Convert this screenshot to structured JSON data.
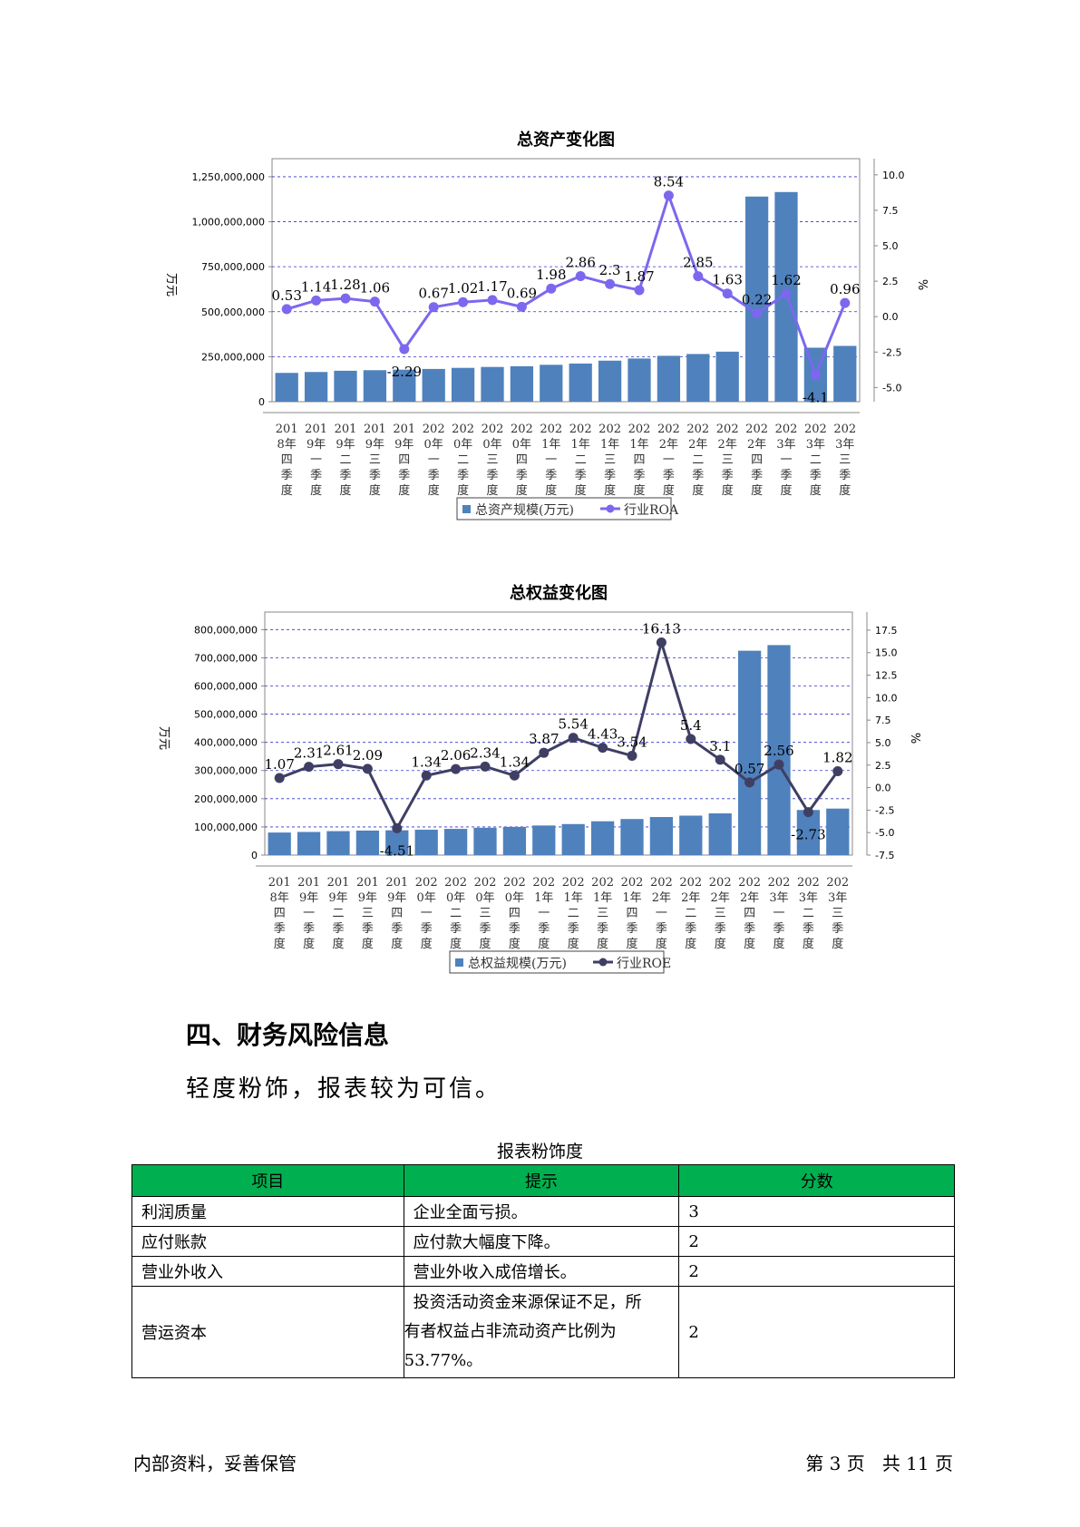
{
  "charts": {
    "quarters": [
      [
        "201",
        "8年",
        "四",
        "季",
        "度"
      ],
      [
        "201",
        "9年",
        "一",
        "季",
        "度"
      ],
      [
        "201",
        "9年",
        "二",
        "季",
        "度"
      ],
      [
        "201",
        "9年",
        "三",
        "季",
        "度"
      ],
      [
        "201",
        "9年",
        "四",
        "季",
        "度"
      ],
      [
        "202",
        "0年",
        "一",
        "季",
        "度"
      ],
      [
        "202",
        "0年",
        "二",
        "季",
        "度"
      ],
      [
        "202",
        "0年",
        "三",
        "季",
        "度"
      ],
      [
        "202",
        "0年",
        "四",
        "季",
        "度"
      ],
      [
        "202",
        "1年",
        "一",
        "季",
        "度"
      ],
      [
        "202",
        "1年",
        "二",
        "季",
        "度"
      ],
      [
        "202",
        "1年",
        "三",
        "季",
        "度"
      ],
      [
        "202",
        "1年",
        "四",
        "季",
        "度"
      ],
      [
        "202",
        "2年",
        "一",
        "季",
        "度"
      ],
      [
        "202",
        "2年",
        "二",
        "季",
        "度"
      ],
      [
        "202",
        "2年",
        "三",
        "季",
        "度"
      ],
      [
        "202",
        "2年",
        "四",
        "季",
        "度"
      ],
      [
        "202",
        "3年",
        "一",
        "季",
        "度"
      ],
      [
        "202",
        "3年",
        "二",
        "季",
        "度"
      ],
      [
        "202",
        "3年",
        "三",
        "季",
        "度"
      ]
    ]
  },
  "chart_data": [
    {
      "type": "bar",
      "title": "总资产变化图",
      "ylabel": "万元",
      "y2label": "%",
      "ylim": [
        0,
        1300000000
      ],
      "y2lim": [
        -6,
        10.5
      ],
      "yticks": [
        0,
        250000000,
        500000000,
        750000000,
        1000000000,
        1250000000
      ],
      "yticklabels": [
        "0",
        "250,000,000",
        "500,000,000",
        "750,000,000",
        "1,000,000,000",
        "1,250,000,000"
      ],
      "y2ticks": [
        -5.0,
        -2.5,
        0.0,
        2.5,
        5.0,
        7.5,
        10.0
      ],
      "y2ticklabels": [
        "-5.0",
        "-2.5",
        "0.0",
        "2.5",
        "5.0",
        "7.5",
        "10.0"
      ],
      "grid": true,
      "legend": "bottom",
      "series": [
        {
          "name": "总资产规模(万元)",
          "type": "bar",
          "color": "#4f81bd",
          "values": [
            160000000,
            165000000,
            172000000,
            175000000,
            178000000,
            182000000,
            188000000,
            193000000,
            197000000,
            205000000,
            212000000,
            228000000,
            240000000,
            255000000,
            265000000,
            278000000,
            1140000000,
            1165000000,
            300000000,
            310000000
          ]
        },
        {
          "name": "行业ROA",
          "type": "line",
          "axis": "right",
          "color": "#7b68ee",
          "values": [
            0.53,
            1.14,
            1.28,
            1.06,
            -2.29,
            0.67,
            1.02,
            1.17,
            0.69,
            1.98,
            2.86,
            2.3,
            1.87,
            8.54,
            2.85,
            1.63,
            0.22,
            1.62,
            -4.1,
            0.96
          ],
          "labels": [
            "0.53",
            "1.14",
            "1.28",
            "1.06",
            "-2.29",
            "0.67",
            "1.02",
            "1.17",
            "0.69",
            "1.98",
            "2.86",
            "2.3",
            "1.87",
            "8.54",
            "2.85",
            "1.63",
            "0.22",
            "1.62",
            "-4.1",
            "0.96"
          ]
        }
      ]
    },
    {
      "type": "bar",
      "title": "总权益变化图",
      "ylabel": "万元",
      "y2label": "%",
      "ylim": [
        0,
        830000000
      ],
      "y2lim": [
        -7.5,
        18.5
      ],
      "yticks": [
        0,
        100000000,
        200000000,
        300000000,
        400000000,
        500000000,
        600000000,
        700000000,
        800000000
      ],
      "yticklabels": [
        "0",
        "100,000,000",
        "200,000,000",
        "300,000,000",
        "400,000,000",
        "500,000,000",
        "600,000,000",
        "700,000,000",
        "800,000,000"
      ],
      "y2ticks": [
        -7.5,
        -5.0,
        -2.5,
        0.0,
        2.5,
        5.0,
        7.5,
        10.0,
        12.5,
        15.0,
        17.5
      ],
      "y2ticklabels": [
        "-7.5",
        "-5.0",
        "-2.5",
        "0.0",
        "2.5",
        "5.0",
        "7.5",
        "10.0",
        "12.5",
        "15.0",
        "17.5"
      ],
      "grid": true,
      "legend": "bottom",
      "series": [
        {
          "name": "总权益规模(万元)",
          "type": "bar",
          "color": "#4f81bd",
          "values": [
            80000000,
            82000000,
            85000000,
            87000000,
            88000000,
            90000000,
            93000000,
            97000000,
            100000000,
            105000000,
            110000000,
            120000000,
            128000000,
            135000000,
            140000000,
            148000000,
            725000000,
            745000000,
            160000000,
            165000000
          ]
        },
        {
          "name": "行业ROE",
          "type": "line",
          "axis": "right",
          "color": "#3f3f64",
          "values": [
            1.07,
            2.31,
            2.61,
            2.09,
            -4.51,
            1.34,
            2.06,
            2.34,
            1.34,
            3.87,
            5.54,
            4.43,
            3.54,
            16.13,
            5.4,
            3.1,
            0.57,
            2.56,
            -2.73,
            1.82
          ],
          "labels": [
            "1.07",
            "2.31",
            "2.61",
            "2.09",
            "-4.51",
            "1.34",
            "2.06",
            "2.34",
            "1.34",
            "3.87",
            "5.54",
            "4.43",
            "3.54",
            "16.13",
            "5.4",
            "3.1",
            "0.57",
            "2.56",
            "-2.73",
            "1.82"
          ]
        }
      ]
    }
  ],
  "section": {
    "title": "四、财务风险信息",
    "summary": "轻度粉饰，报表较为可信。"
  },
  "table": {
    "caption": "报表粉饰度",
    "headers": [
      "项目",
      "提示",
      "分数"
    ],
    "rows": [
      {
        "item": "利润质量",
        "hint": "企业全面亏损。",
        "score": "3"
      },
      {
        "item": "应付账款",
        "hint": "应付款大幅度下降。",
        "score": "2"
      },
      {
        "item": "营业外收入",
        "hint": "营业外收入成倍增长。",
        "score": "2"
      },
      {
        "item": "营运资本",
        "hint_lines": [
          "投资活动资金来源保证不足，所",
          "有者权益占非流动资产比例为",
          "53.77%。"
        ],
        "score": "2"
      }
    ]
  },
  "footer": {
    "left": "内部资料，妥善保管",
    "right": "第 3 页   共 11 页"
  }
}
